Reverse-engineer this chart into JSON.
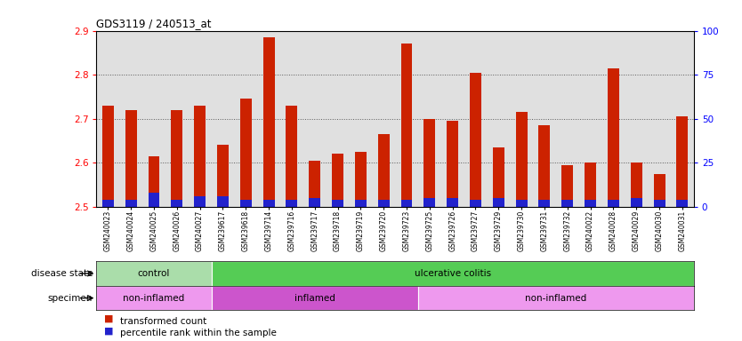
{
  "title": "GDS3119 / 240513_at",
  "samples": [
    "GSM240023",
    "GSM240024",
    "GSM240025",
    "GSM240026",
    "GSM240027",
    "GSM239617",
    "GSM239618",
    "GSM239714",
    "GSM239716",
    "GSM239717",
    "GSM239718",
    "GSM239719",
    "GSM239720",
    "GSM239723",
    "GSM239725",
    "GSM239726",
    "GSM239727",
    "GSM239729",
    "GSM239730",
    "GSM239731",
    "GSM239732",
    "GSM240022",
    "GSM240028",
    "GSM240029",
    "GSM240030",
    "GSM240031"
  ],
  "transformed_count": [
    2.73,
    2.72,
    2.615,
    2.72,
    2.73,
    2.64,
    2.745,
    2.885,
    2.73,
    2.605,
    2.62,
    2.625,
    2.665,
    2.87,
    2.7,
    2.695,
    2.805,
    2.635,
    2.715,
    2.685,
    2.595,
    2.6,
    2.815,
    2.6,
    2.575,
    2.705
  ],
  "percentile_rank": [
    4,
    4,
    8,
    4,
    6,
    6,
    4,
    4,
    4,
    5,
    4,
    4,
    4,
    4,
    5,
    5,
    4,
    5,
    4,
    4,
    4,
    4,
    4,
    5,
    4,
    4
  ],
  "ymin": 2.5,
  "ymax": 2.9,
  "yticks_left": [
    2.5,
    2.6,
    2.7,
    2.8,
    2.9
  ],
  "yticks_right": [
    0,
    25,
    50,
    75,
    100
  ],
  "bar_color_red": "#cc2200",
  "bar_color_blue": "#2222cc",
  "bg_color": "#e0e0e0",
  "disease_state_groups": [
    {
      "label": "control",
      "start": 0,
      "end": 5,
      "color": "#aaddaa"
    },
    {
      "label": "ulcerative colitis",
      "start": 5,
      "end": 26,
      "color": "#55cc55"
    }
  ],
  "specimen_groups": [
    {
      "label": "non-inflamed",
      "start": 0,
      "end": 5,
      "color": "#ee99ee"
    },
    {
      "label": "inflamed",
      "start": 5,
      "end": 14,
      "color": "#cc55cc"
    },
    {
      "label": "non-inflamed",
      "start": 14,
      "end": 26,
      "color": "#ee99ee"
    }
  ],
  "legend_items": [
    {
      "color": "#cc2200",
      "label": "transformed count"
    },
    {
      "color": "#2222cc",
      "label": "percentile rank within the sample"
    }
  ],
  "bar_width": 0.5
}
